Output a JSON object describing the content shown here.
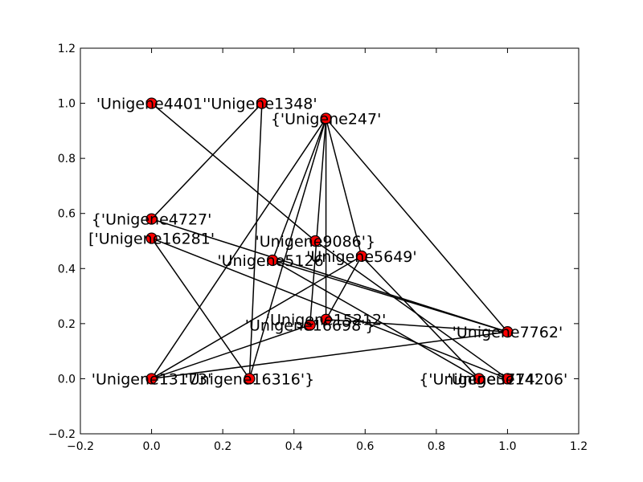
{
  "chart_data": {
    "type": "network",
    "xlim": [
      -0.2,
      1.2
    ],
    "ylim": [
      -0.2,
      1.2
    ],
    "x_ticks": [
      "−0.2",
      "0.0",
      "0.2",
      "0.4",
      "0.6",
      "0.8",
      "1.0",
      "1.2"
    ],
    "y_ticks": [
      "−0.2",
      "0.0",
      "0.2",
      "0.4",
      "0.6",
      "0.8",
      "1.0",
      "1.2"
    ],
    "node_color": "#ff0000",
    "edge_color": "#000000",
    "nodes": [
      {
        "id": "n4401",
        "label": "'Unigene4401'",
        "x": 0.0,
        "y": 1.0
      },
      {
        "id": "n1348",
        "label": "'Unigene1348'",
        "x": 0.31,
        "y": 1.0
      },
      {
        "id": "n247",
        "label": "{'Unigene247'",
        "x": 0.49,
        "y": 0.945
      },
      {
        "id": "n4727",
        "label": "{'Unigene4727'",
        "x": 0.0,
        "y": 0.58
      },
      {
        "id": "n16281",
        "label": "['Unigene16281'",
        "x": 0.0,
        "y": 0.51
      },
      {
        "id": "n9086",
        "label": "'Unigene9086'}",
        "x": 0.46,
        "y": 0.5
      },
      {
        "id": "n5649",
        "label": "'Unigene5649'",
        "x": 0.59,
        "y": 0.445
      },
      {
        "id": "n5126",
        "label": "'Unigene5126'",
        "x": 0.34,
        "y": 0.43
      },
      {
        "id": "n15212",
        "label": "'Unigene15212'",
        "x": 0.49,
        "y": 0.215
      },
      {
        "id": "n16698",
        "label": "'Unigene16698'}",
        "x": 0.445,
        "y": 0.195
      },
      {
        "id": "n7762",
        "label": "'Unigene7762'",
        "x": 1.0,
        "y": 0.17
      },
      {
        "id": "n13173",
        "label": "'Unigene13173'",
        "x": 0.0,
        "y": 0.0
      },
      {
        "id": "n16316",
        "label": "'Unigene16316'}",
        "x": 0.275,
        "y": 0.0
      },
      {
        "id": "n3774",
        "label": "{'Unigene3774'",
        "x": 0.92,
        "y": 0.0
      },
      {
        "id": "n14206",
        "label": "'Unigene14206'",
        "x": 1.0,
        "y": 0.0
      }
    ],
    "edges": [
      [
        "n4401",
        "n9086"
      ],
      [
        "n1348",
        "n16316"
      ],
      [
        "n4727",
        "n1348"
      ],
      [
        "n4727",
        "n7762"
      ],
      [
        "n16281",
        "n16316"
      ],
      [
        "n16281",
        "n14206"
      ],
      [
        "n247",
        "n13173"
      ],
      [
        "n247",
        "n5126"
      ],
      [
        "n247",
        "n15212"
      ],
      [
        "n247",
        "n5649"
      ],
      [
        "n247",
        "n7762"
      ],
      [
        "n247",
        "n16698"
      ],
      [
        "n247",
        "n16316"
      ],
      [
        "n5126",
        "n7762"
      ],
      [
        "n5126",
        "n3774"
      ],
      [
        "n5649",
        "n15212"
      ],
      [
        "n5649",
        "n13173"
      ],
      [
        "n5649",
        "n3774"
      ],
      [
        "n9086",
        "n14206"
      ],
      [
        "n15212",
        "n7762"
      ],
      [
        "n16698",
        "n13173"
      ],
      [
        "n13173",
        "n7762"
      ]
    ]
  }
}
